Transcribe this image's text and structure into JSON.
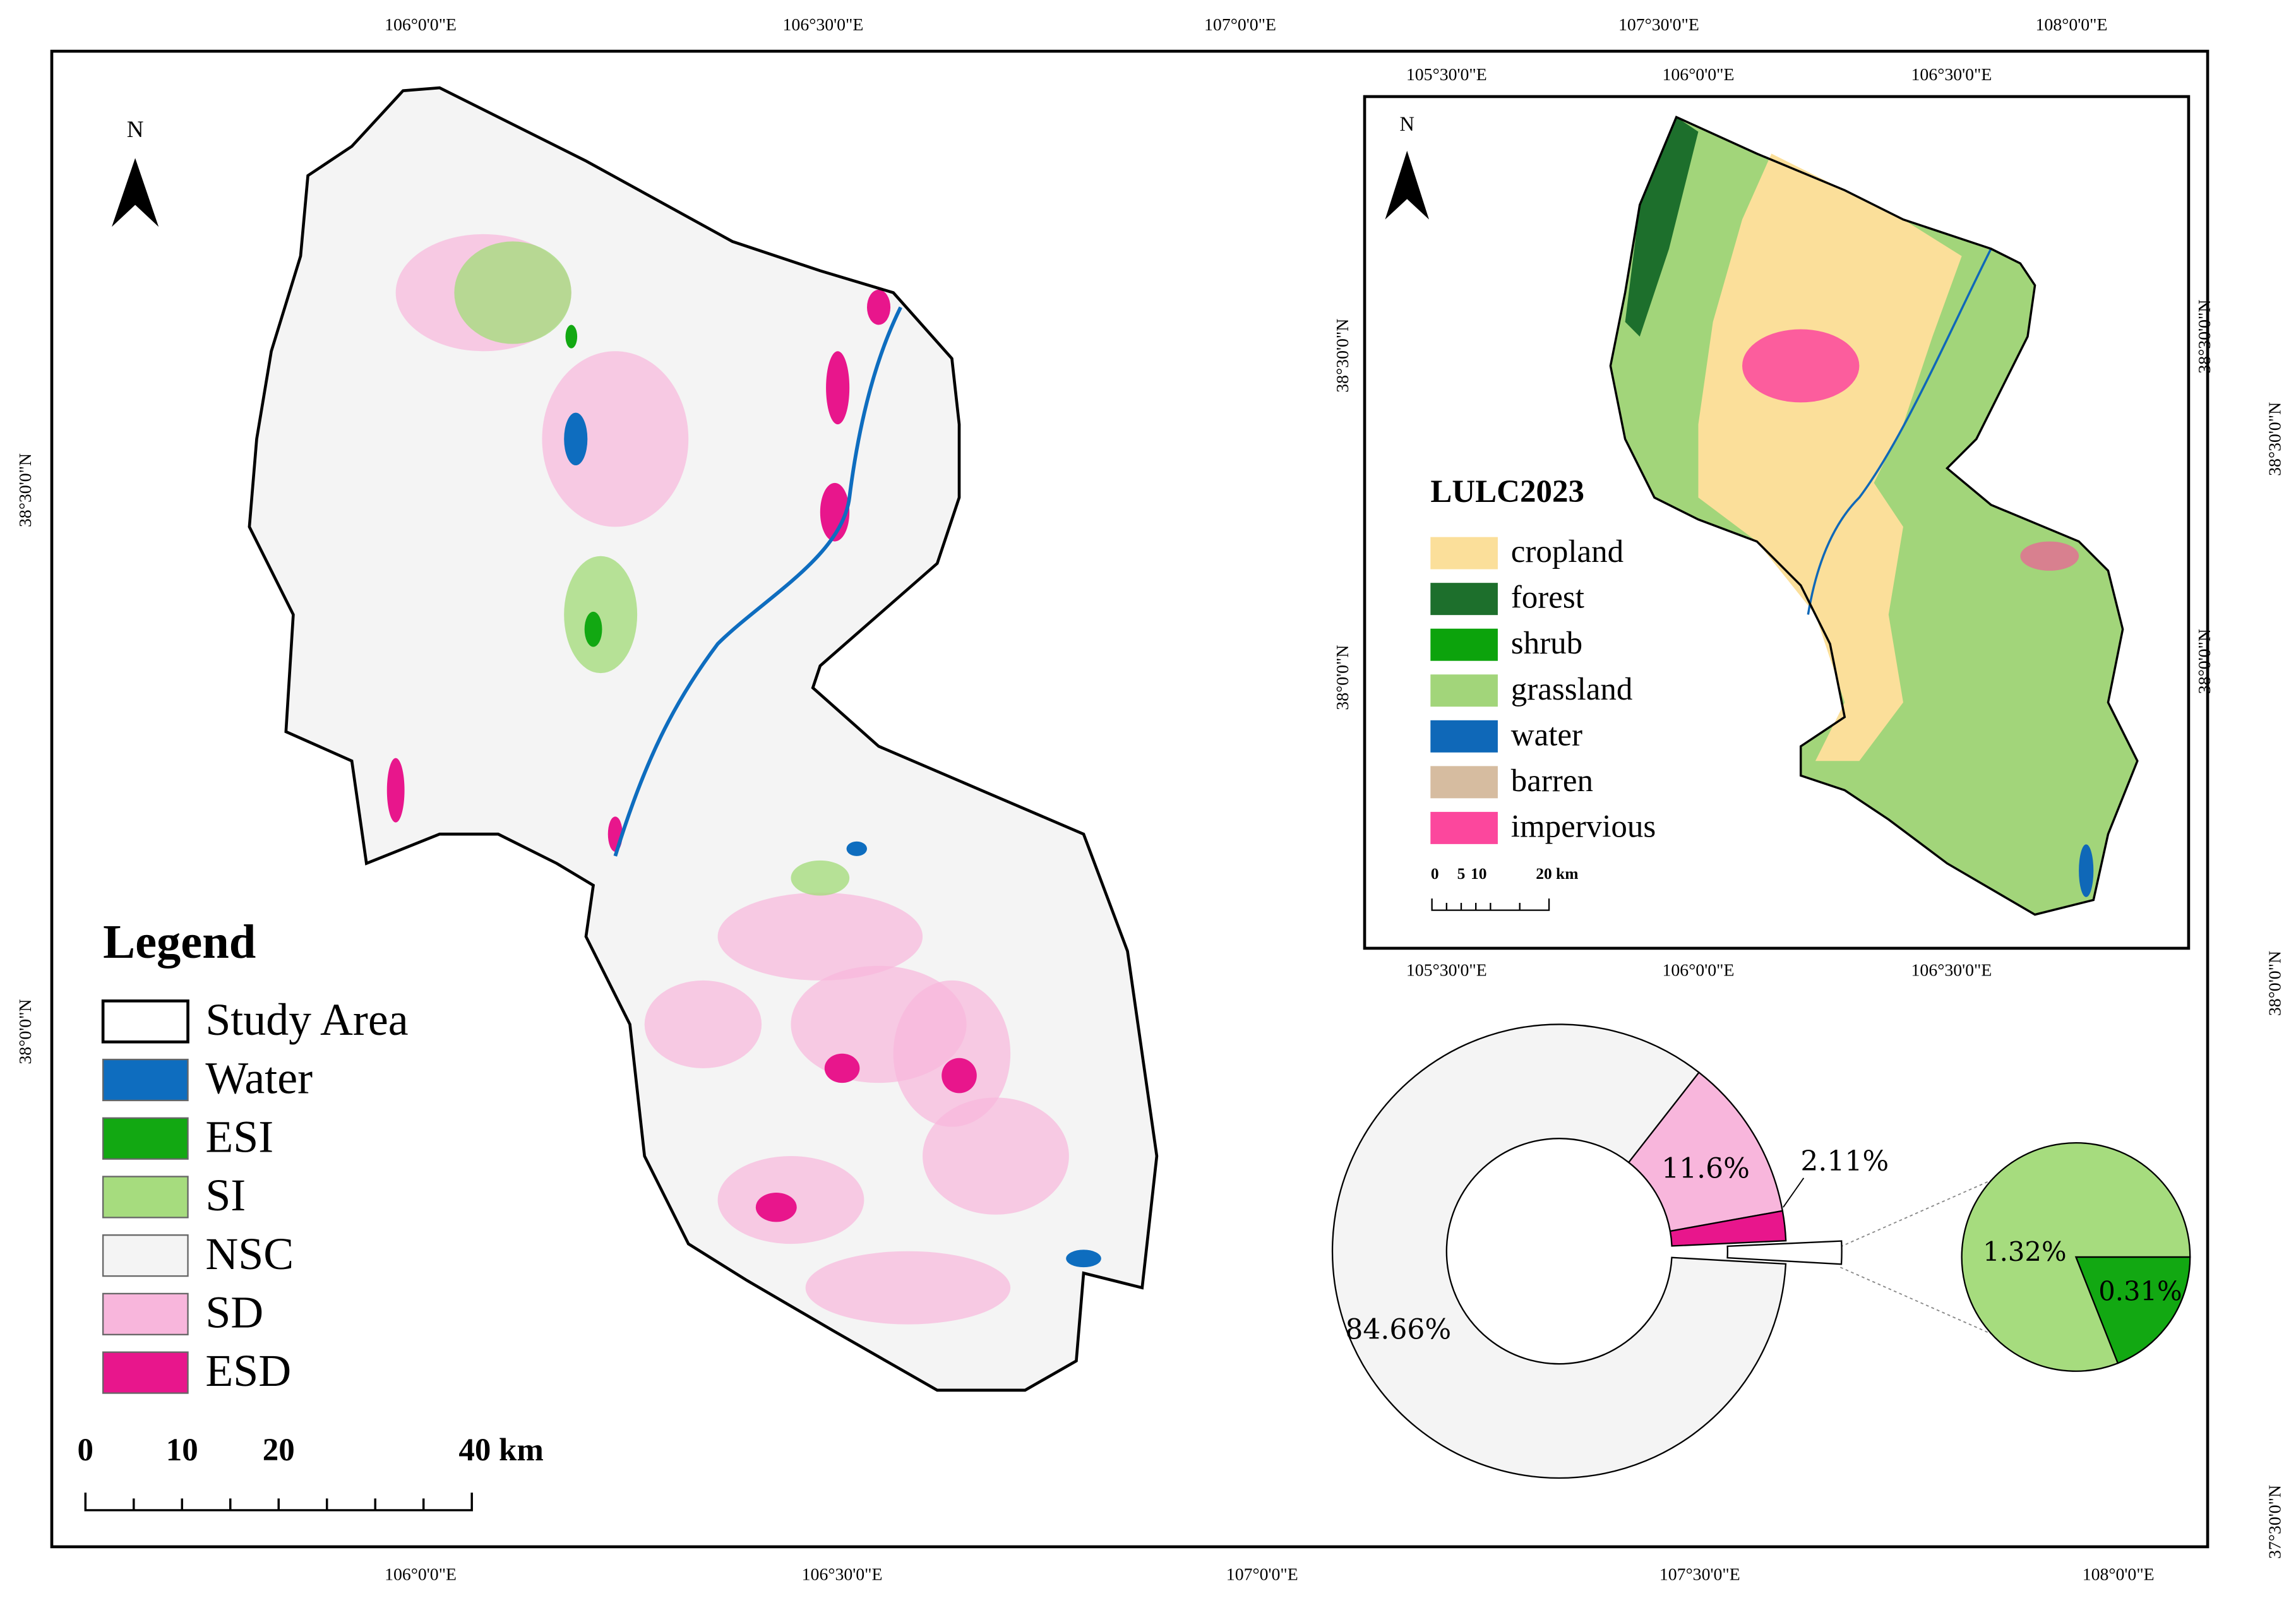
{
  "map": {
    "top_labels": [
      "106°0'0\"E",
      "106°30'0\"E",
      "107°0'0\"E",
      "107°30'0\"E",
      "108°0'0\"E"
    ],
    "bottom_labels": [
      "106°0'0\"E",
      "106°30'0\"E",
      "107°0'0\"E",
      "107°30'0\"E",
      "108°0'0\"E"
    ],
    "left_labels": [
      "38°30'0\"N",
      "38°0'0\"N"
    ],
    "right_labels": [
      "38°30'0\"N",
      "38°0'0\"N",
      "37°30'0\"N"
    ],
    "north": "N",
    "legend": {
      "title": "Legend",
      "items": [
        {
          "label": "Study Area",
          "color": "#ffffff"
        },
        {
          "label": "Water",
          "color": "#0e6dbf"
        },
        {
          "label": "ESI",
          "color": "#12a812"
        },
        {
          "label": "SI",
          "color": "#a6dc7e"
        },
        {
          "label": "NSC",
          "color": "#f4f4f4"
        },
        {
          "label": "SD",
          "color": "#f8b6dc"
        },
        {
          "label": "ESD",
          "color": "#e8168c"
        }
      ]
    },
    "scale": [
      "0",
      "10",
      "20",
      "40 km"
    ]
  },
  "inset": {
    "top_labels": [
      "105°30'0\"E",
      "106°0'0\"E",
      "106°30'0\"E"
    ],
    "bottom_labels": [
      "105°30'0\"E",
      "106°0'0\"E",
      "106°30'0\"E"
    ],
    "left_labels": [
      "38°30'0\"N",
      "38°0'0\"N"
    ],
    "right_labels": [
      "38°30'0\"N",
      "38°0'0\"N"
    ],
    "north": "N",
    "legend": {
      "title": "LULC2023",
      "items": [
        {
          "label": "cropland",
          "color": "#fbdf9a"
        },
        {
          "label": "forest",
          "color": "#1d6f2c"
        },
        {
          "label": "shrub",
          "color": "#0ca30c"
        },
        {
          "label": "grassland",
          "color": "#a2d57a"
        },
        {
          "label": "water",
          "color": "#0f68b8"
        },
        {
          "label": "barren",
          "color": "#d6bca0"
        },
        {
          "label": "impervious",
          "color": "#fc479d"
        }
      ]
    },
    "scale": [
      "0",
      "5",
      "10",
      "20 km"
    ]
  },
  "donut": {
    "values": [
      11.6,
      2.11,
      84.66
    ],
    "value_labels": [
      "11.6%",
      "2.11%",
      "84.66%"
    ],
    "colors": [
      "#f8b6dc",
      "#e8168c",
      "#f4f4f4"
    ]
  },
  "pie": {
    "values": [
      1.32,
      0.31
    ],
    "value_labels": [
      "1.32%",
      "0.31%"
    ],
    "colors": [
      "#a6dc7e",
      "#12a812"
    ]
  }
}
